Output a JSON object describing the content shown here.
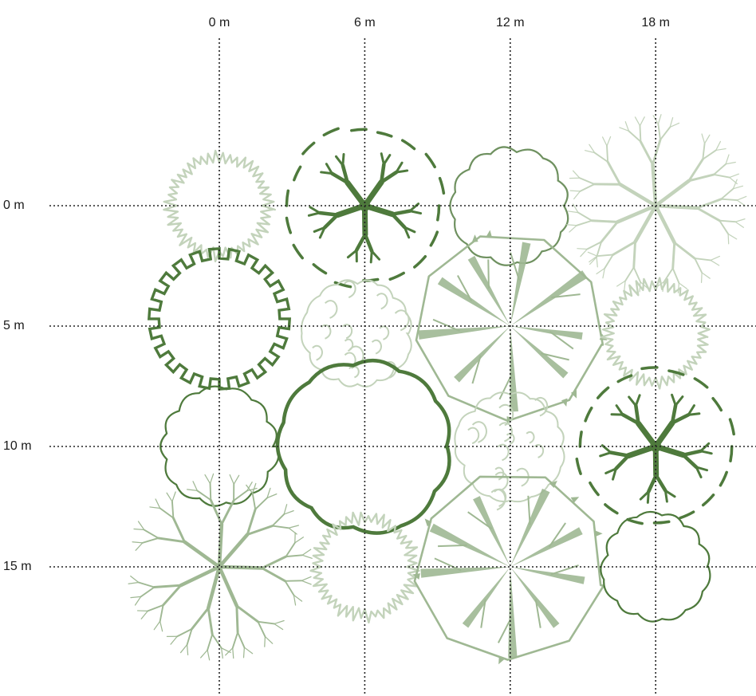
{
  "colors": {
    "dark": "#4e7a3c",
    "medium": "#6f9160",
    "light": "#9fb893",
    "pale": "#c3d3bb",
    "grid": "#222222"
  },
  "x_axis": {
    "ticks": [
      {
        "value": 0,
        "label": "0 m"
      },
      {
        "value": 6,
        "label": "6 m"
      },
      {
        "value": 12,
        "label": "12 m"
      },
      {
        "value": 18,
        "label": "18 m"
      }
    ]
  },
  "y_axis": {
    "ticks": [
      {
        "value": 0,
        "label": "0 m"
      },
      {
        "value": 5,
        "label": "5 m"
      },
      {
        "value": 10,
        "label": "10 m"
      },
      {
        "value": 15,
        "label": "15 m"
      }
    ]
  },
  "trees": [
    {
      "style": "spiky",
      "x": 0,
      "y": 0,
      "r": 2.2,
      "shade": "pale"
    },
    {
      "style": "branchy-gaps",
      "x": 6,
      "y": 0,
      "r": 3.4,
      "shade": "dark"
    },
    {
      "style": "scalloped",
      "x": 12,
      "y": 0,
      "r": 2.4,
      "shade": "medium"
    },
    {
      "style": "radial-thin",
      "x": 18,
      "y": 0,
      "r": 4.2,
      "shade": "pale"
    },
    {
      "style": "crenellated",
      "x": 0,
      "y": 4.7,
      "r": 2.9,
      "shade": "dark"
    },
    {
      "style": "curly",
      "x": 5.7,
      "y": 5.3,
      "r": 2.3,
      "shade": "pale"
    },
    {
      "style": "radial-wedge",
      "x": 12,
      "y": 5,
      "r": 4.0,
      "shade": "light"
    },
    {
      "style": "spiky",
      "x": 18,
      "y": 5.3,
      "r": 2.2,
      "shade": "pale"
    },
    {
      "style": "scalloped",
      "x": 0,
      "y": 10,
      "r": 2.4,
      "shade": "dark"
    },
    {
      "style": "thick-blob",
      "x": 6,
      "y": 10,
      "r": 3.6,
      "shade": "dark"
    },
    {
      "style": "curly",
      "x": 12,
      "y": 10,
      "r": 2.3,
      "shade": "pale"
    },
    {
      "style": "branchy-gaps",
      "x": 18,
      "y": 10,
      "r": 3.4,
      "shade": "dark"
    },
    {
      "style": "radial-thin",
      "x": 0,
      "y": 15,
      "r": 4.2,
      "shade": "light"
    },
    {
      "style": "spiky",
      "x": 6,
      "y": 15,
      "r": 2.2,
      "shade": "pale"
    },
    {
      "style": "radial-wedge",
      "x": 12,
      "y": 15,
      "r": 4.0,
      "shade": "light"
    },
    {
      "style": "scalloped",
      "x": 18,
      "y": 15,
      "r": 2.2,
      "shade": "dark"
    }
  ]
}
